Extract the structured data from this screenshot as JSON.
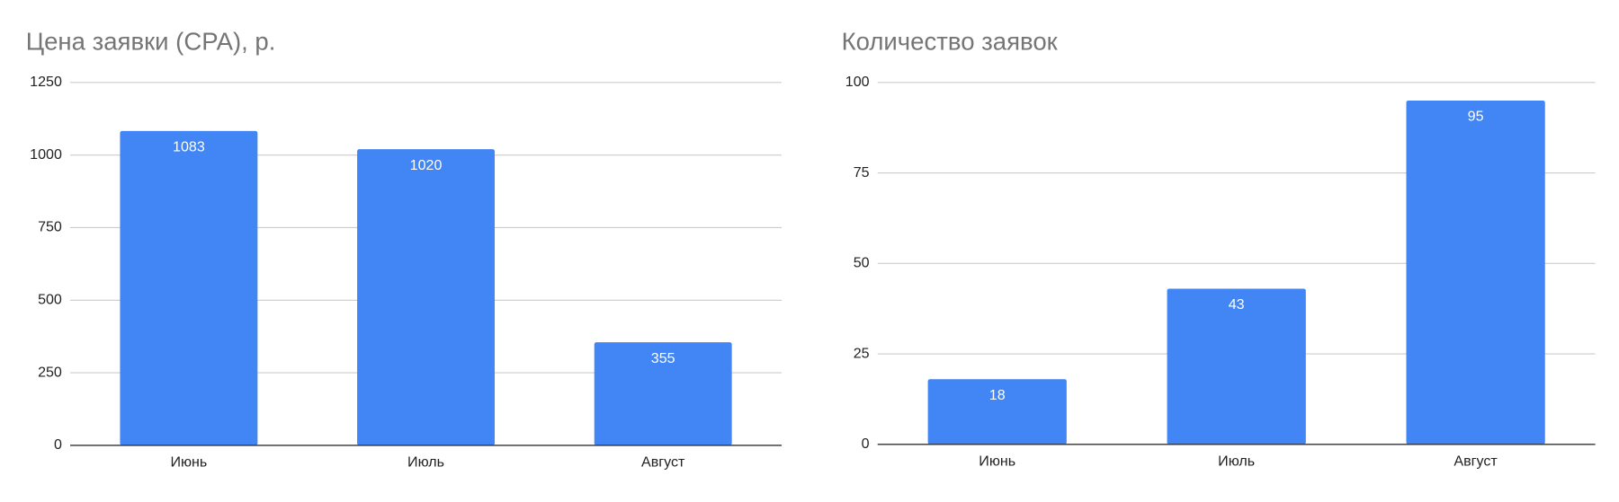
{
  "chart_data": [
    {
      "type": "bar",
      "title": "Цена заявки (CPA), р.",
      "categories": [
        "Июнь",
        "Июль",
        "Август"
      ],
      "values": [
        1083,
        1020,
        355
      ],
      "color": "#4285f4",
      "ylim": [
        0,
        1250
      ],
      "yticks": [
        0,
        250,
        500,
        750,
        1000,
        1250
      ],
      "grid": true
    },
    {
      "type": "bar",
      "title": "Количество заявок",
      "categories": [
        "Июнь",
        "Июль",
        "Август"
      ],
      "values": [
        18,
        43,
        95
      ],
      "color": "#4285f4",
      "ylim": [
        0,
        100
      ],
      "yticks": [
        0,
        25,
        50,
        75,
        100
      ],
      "grid": true
    }
  ]
}
